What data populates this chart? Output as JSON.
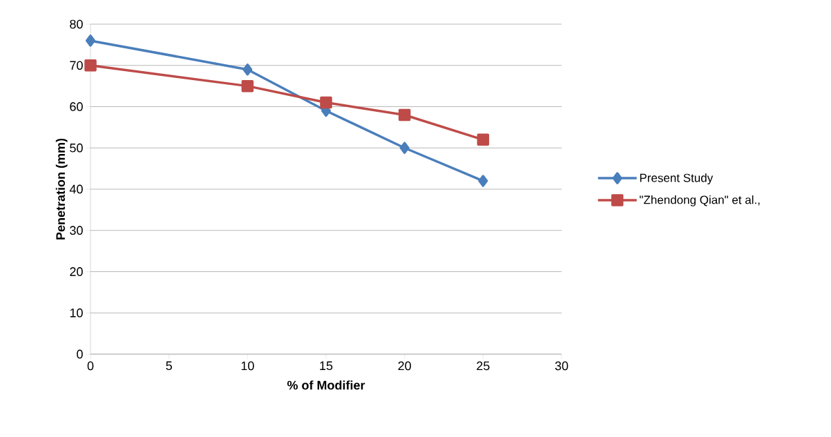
{
  "chart_data": {
    "type": "line",
    "xlabel": "% of Modifier",
    "ylabel": "Penetration (mm)",
    "x": [
      0,
      10,
      15,
      20,
      25
    ],
    "series": [
      {
        "name": "Present Study",
        "color": "#4a7ebb",
        "marker": "diamond",
        "values": [
          76,
          69,
          59,
          50,
          42
        ]
      },
      {
        "name": "\"Zhendong Qian\" et al.,",
        "color": "#be4b48",
        "marker": "square",
        "values": [
          70,
          65,
          61,
          58,
          52
        ]
      }
    ],
    "xlim": [
      0,
      30
    ],
    "xticks": [
      0,
      5,
      10,
      15,
      20,
      25,
      30
    ],
    "ylim": [
      0,
      80
    ],
    "yticks": [
      0,
      10,
      20,
      30,
      40,
      50,
      60,
      70,
      80
    ],
    "grid": "y",
    "legend": "right",
    "line_style": "solid"
  }
}
